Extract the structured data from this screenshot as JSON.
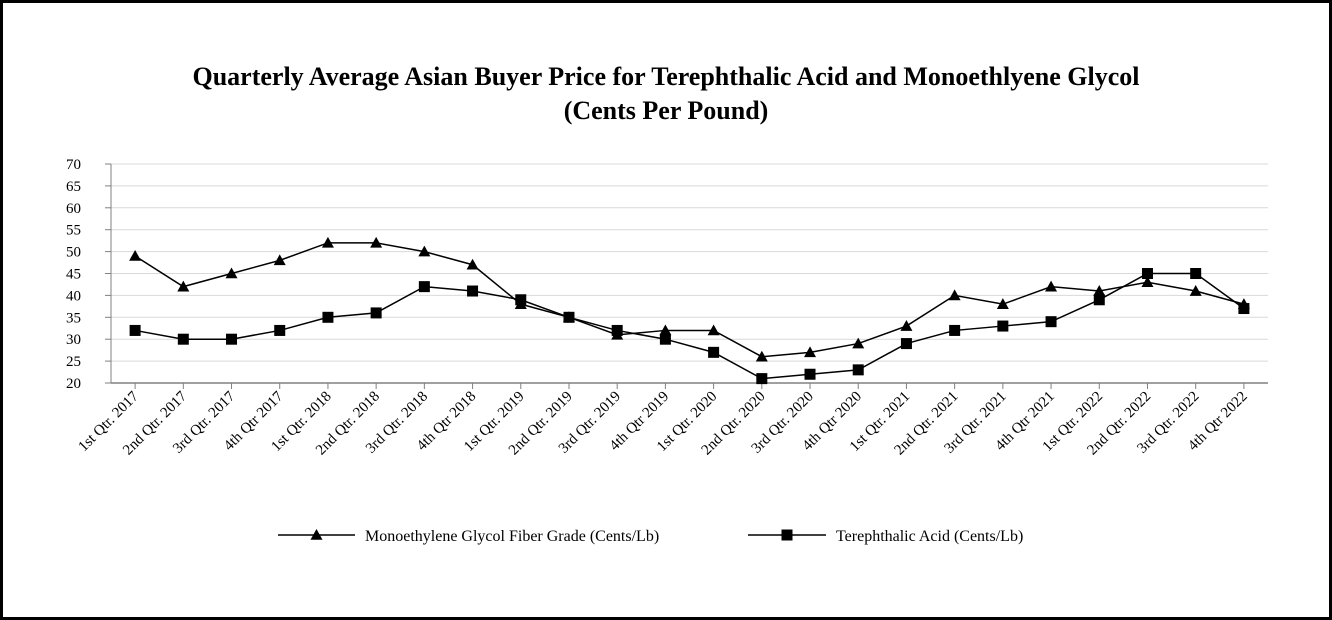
{
  "chart_data": {
    "type": "line",
    "title": "Quarterly Average Asian Buyer Price for Terephthalic Acid and Monoethlyene Glycol",
    "subtitle": "(Cents Per Pound)",
    "xlabel": "",
    "ylabel": "",
    "ylim": [
      20,
      70
    ],
    "yticks": [
      20,
      25,
      30,
      35,
      40,
      45,
      50,
      55,
      60,
      65,
      70
    ],
    "grid": true,
    "legend_position": "bottom",
    "categories": [
      "1st Qtr. 2017",
      "2nd Qtr. 2017",
      "3rd Qtr. 2017",
      "4th Qtr 2017",
      "1st Qtr. 2018",
      "2nd Qtr. 2018",
      "3rd Qtr. 2018",
      "4th Qtr 2018",
      "1st Qtr. 2019",
      "2nd Qtr. 2019",
      "3rd Qtr. 2019",
      "4th Qtr 2019",
      "1st Qtr. 2020",
      "2nd Qtr. 2020",
      "3rd Qtr. 2020",
      "4th Qtr 2020",
      "1st Qtr. 2021",
      "2nd Qtr. 2021",
      "3rd Qtr. 2021",
      "4th Qtr 2021",
      "1st Qtr. 2022",
      "2nd Qtr. 2022",
      "3rd Qtr. 2022",
      "4th Qtr 2022"
    ],
    "series": [
      {
        "name": "Monoethylene Glycol Fiber Grade (Cents/Lb)",
        "marker": "triangle",
        "color": "#000000",
        "values": [
          49,
          42,
          45,
          48,
          52,
          52,
          50,
          47,
          38,
          35,
          31,
          32,
          32,
          26,
          27,
          29,
          33,
          40,
          38,
          42,
          41,
          43,
          41,
          38
        ]
      },
      {
        "name": "Terephthalic Acid (Cents/Lb)",
        "marker": "square",
        "color": "#000000",
        "values": [
          32,
          30,
          30,
          32,
          35,
          36,
          42,
          41,
          39,
          35,
          32,
          30,
          27,
          21,
          22,
          23,
          29,
          32,
          33,
          34,
          39,
          45,
          45,
          37
        ]
      }
    ]
  }
}
